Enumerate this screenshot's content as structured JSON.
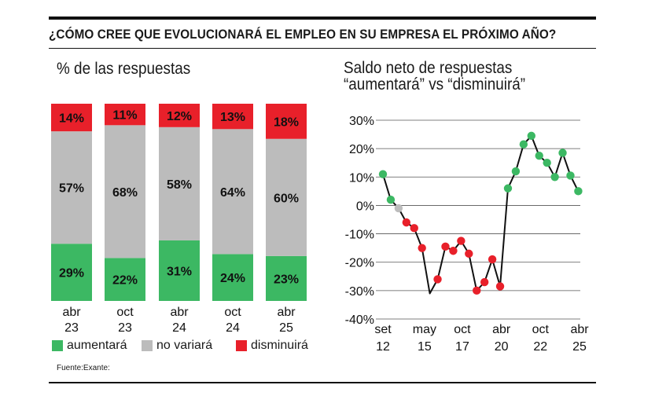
{
  "header": {
    "title": "¿CÓMO CREE QUE EVOLUCIONARÁ EL EMPLEO EN SU EMPRESA EL PRÓXIMO AÑO?",
    "source": "Fuente:Exante:"
  },
  "colors": {
    "aumentara": "#3cb863",
    "no_variara": "#bcbcbc",
    "disminuira": "#e8202a",
    "line": "#111111",
    "grid": "#555555"
  },
  "chart_data": [
    {
      "type": "bar",
      "stacked": true,
      "title": "% de las respuestas",
      "categories": [
        [
          "abr",
          "23"
        ],
        [
          "oct",
          "23"
        ],
        [
          "abr",
          "24"
        ],
        [
          "oct",
          "24"
        ],
        [
          "abr",
          "25"
        ]
      ],
      "series": [
        {
          "name": "aumentará",
          "values": [
            29,
            22,
            31,
            24,
            23
          ]
        },
        {
          "name": "no variará",
          "values": [
            57,
            68,
            58,
            64,
            60
          ]
        },
        {
          "name": "disminuirá",
          "values": [
            14,
            11,
            12,
            13,
            18
          ]
        }
      ],
      "value_labels": {
        "aumentará": [
          "29%",
          "22%",
          "31%",
          "24%",
          "23%"
        ],
        "no variará": [
          "57%",
          "68%",
          "58%",
          "64%",
          "60%"
        ],
        "disminuirá": [
          "14%",
          "11%",
          "12%",
          "13%",
          "18%"
        ]
      },
      "legend": [
        "aumentará",
        "no variará",
        "disminuirá"
      ],
      "legend_position": "bottom",
      "ylim": [
        0,
        100
      ]
    },
    {
      "type": "line",
      "title": [
        "Saldo neto de respuestas",
        "“aumentará” vs “disminuirá”"
      ],
      "ylim": [
        -40,
        30
      ],
      "yticks": [
        "30%",
        "20%",
        "10%",
        "0%",
        "-10%",
        "-20%",
        "-30%",
        "-40%"
      ],
      "xticks": [
        [
          "set",
          "12"
        ],
        [
          "may",
          "15"
        ],
        [
          "oct",
          "17"
        ],
        [
          "abr",
          "20"
        ],
        [
          "oct",
          "22"
        ],
        [
          "abr",
          "25"
        ]
      ],
      "xtick_positions": [
        2012.67,
        2015.33,
        2017.75,
        2020.25,
        2022.75,
        2025.25
      ],
      "grid": true,
      "line": [
        [
          2012.67,
          11
        ],
        [
          2013.17,
          2
        ],
        [
          2013.67,
          -1
        ],
        [
          2014.17,
          -6
        ],
        [
          2014.67,
          -8
        ],
        [
          2015.17,
          -15
        ],
        [
          2015.67,
          -31
        ],
        [
          2016.17,
          -26
        ],
        [
          2016.67,
          -14.5
        ],
        [
          2017.17,
          -16
        ],
        [
          2017.67,
          -12.5
        ],
        [
          2018.17,
          -17
        ],
        [
          2018.67,
          -30
        ],
        [
          2019.17,
          -27
        ],
        [
          2019.67,
          -19
        ],
        [
          2020.17,
          -28.5
        ],
        [
          2020.67,
          6
        ],
        [
          2021.17,
          12
        ],
        [
          2021.67,
          21.5
        ],
        [
          2022.17,
          24.5
        ],
        [
          2022.67,
          17.5
        ],
        [
          2023.17,
          15
        ],
        [
          2023.67,
          10
        ],
        [
          2024.17,
          18.5
        ],
        [
          2024.67,
          10.5
        ],
        [
          2025.17,
          5
        ]
      ],
      "markers": [
        {
          "x": 2012.67,
          "y": 11,
          "color": "green"
        },
        {
          "x": 2013.17,
          "y": 2,
          "color": "green"
        },
        {
          "x": 2013.67,
          "y": -1,
          "color": "gray"
        },
        {
          "x": 2014.17,
          "y": -6,
          "color": "red"
        },
        {
          "x": 2014.67,
          "y": -8,
          "color": "red"
        },
        {
          "x": 2015.17,
          "y": -15,
          "color": "red"
        },
        {
          "x": 2016.17,
          "y": -26,
          "color": "red"
        },
        {
          "x": 2016.67,
          "y": -14.5,
          "color": "red"
        },
        {
          "x": 2017.17,
          "y": -16,
          "color": "red"
        },
        {
          "x": 2017.67,
          "y": -12.5,
          "color": "red"
        },
        {
          "x": 2018.17,
          "y": -17,
          "color": "red"
        },
        {
          "x": 2018.67,
          "y": -30,
          "color": "red"
        },
        {
          "x": 2019.17,
          "y": -27,
          "color": "red"
        },
        {
          "x": 2019.67,
          "y": -19,
          "color": "red"
        },
        {
          "x": 2020.17,
          "y": -28.5,
          "color": "red"
        },
        {
          "x": 2020.67,
          "y": 6,
          "color": "green"
        },
        {
          "x": 2021.17,
          "y": 12,
          "color": "green"
        },
        {
          "x": 2021.67,
          "y": 21.5,
          "color": "green"
        },
        {
          "x": 2022.17,
          "y": 24.5,
          "color": "green"
        },
        {
          "x": 2022.67,
          "y": 17.5,
          "color": "green"
        },
        {
          "x": 2023.17,
          "y": 15,
          "color": "green"
        },
        {
          "x": 2023.67,
          "y": 10,
          "color": "green"
        },
        {
          "x": 2024.17,
          "y": 18.5,
          "color": "green"
        },
        {
          "x": 2024.67,
          "y": 10.5,
          "color": "green"
        },
        {
          "x": 2025.17,
          "y": 5,
          "color": "green"
        }
      ]
    }
  ]
}
